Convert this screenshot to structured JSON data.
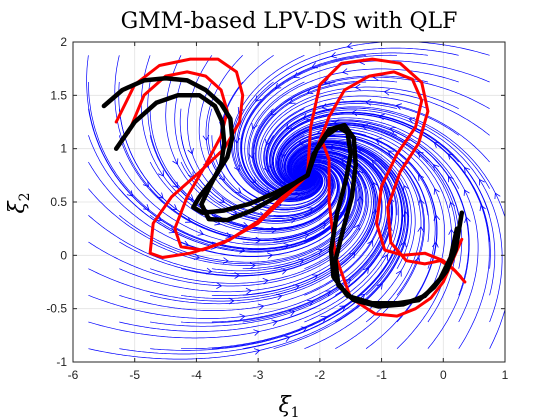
{
  "chart_data": {
    "type": "streamplot",
    "title": "GMM-based LPV-DS with QLF",
    "xlabel": {
      "symbol": "ξ",
      "subscript": "1"
    },
    "ylabel": {
      "symbol": "ξ",
      "subscript": "2"
    },
    "xlim": [
      -6,
      1
    ],
    "ylim": [
      -1,
      2
    ],
    "xticks": [
      "-6",
      "-5",
      "-4",
      "-3",
      "-2",
      "-1",
      "0",
      "1"
    ],
    "yticks": [
      "-1",
      "-0.5",
      "0",
      "0.5",
      "1",
      "1.5",
      "2"
    ],
    "grid": true,
    "attractor": [
      -2.2,
      0.75
    ],
    "colors": {
      "streamlines": "#0000ff",
      "demonstrations": "#000000",
      "reproductions": "#ff0000"
    },
    "demonstrations": [
      {
        "x": [
          -5.5,
          -5.2,
          -4.85,
          -4.5,
          -4.15,
          -3.85,
          -3.6,
          -3.45,
          -3.42,
          -3.5,
          -3.72,
          -3.95,
          -4.05,
          -3.9,
          -3.55,
          -3.15,
          -2.75,
          -2.4,
          -2.2
        ],
        "y": [
          1.4,
          1.55,
          1.64,
          1.66,
          1.64,
          1.55,
          1.42,
          1.28,
          1.1,
          0.92,
          0.72,
          0.55,
          0.45,
          0.4,
          0.42,
          0.48,
          0.58,
          0.68,
          0.75
        ]
      },
      {
        "x": [
          -5.3,
          -5.0,
          -4.65,
          -4.3,
          -3.95,
          -3.7,
          -3.58,
          -3.55,
          -3.6,
          -3.78,
          -3.92,
          -3.8,
          -3.5,
          -3.1,
          -2.7,
          -2.35,
          -2.2
        ],
        "y": [
          1.0,
          1.25,
          1.43,
          1.5,
          1.5,
          1.4,
          1.25,
          1.05,
          0.85,
          0.65,
          0.48,
          0.34,
          0.33,
          0.42,
          0.55,
          0.7,
          0.75
        ]
      },
      {
        "x": [
          -2.2,
          -2.1,
          -1.9,
          -1.7,
          -1.55,
          -1.5,
          -1.58,
          -1.72,
          -1.82,
          -1.78,
          -1.55,
          -1.15,
          -0.75,
          -0.4,
          -0.15,
          0.05,
          0.2,
          0.3
        ],
        "y": [
          0.75,
          0.95,
          1.12,
          1.2,
          1.15,
          0.95,
          0.7,
          0.4,
          0.05,
          -0.2,
          -0.38,
          -0.45,
          -0.45,
          -0.42,
          -0.3,
          -0.15,
          0.05,
          0.4
        ]
      },
      {
        "x": [
          -2.2,
          -2.05,
          -1.85,
          -1.6,
          -1.45,
          -1.42,
          -1.48,
          -1.62,
          -1.75,
          -1.7,
          -1.45,
          -1.05,
          -0.65,
          -0.3,
          -0.05,
          0.12,
          0.22
        ],
        "y": [
          0.75,
          1.0,
          1.18,
          1.22,
          1.1,
          0.85,
          0.55,
          0.25,
          -0.05,
          -0.28,
          -0.42,
          -0.48,
          -0.46,
          -0.38,
          -0.22,
          -0.02,
          0.25
        ]
      }
    ],
    "reproductions": [
      {
        "x": [
          -5.3,
          -5.0,
          -4.6,
          -4.1,
          -3.65,
          -3.35,
          -3.25,
          -3.3,
          -3.55,
          -3.95,
          -4.4,
          -4.7,
          -4.75,
          -4.55,
          -4.1,
          -3.55,
          -3.0,
          -2.55,
          -2.2
        ],
        "y": [
          1.25,
          1.6,
          1.78,
          1.84,
          1.84,
          1.72,
          1.5,
          1.25,
          1.0,
          0.78,
          0.55,
          0.3,
          0.02,
          -0.02,
          0.02,
          0.12,
          0.3,
          0.55,
          0.75
        ]
      },
      {
        "x": [
          -5.1,
          -4.85,
          -4.5,
          -4.15,
          -3.85,
          -3.6,
          -3.5,
          -3.6,
          -3.85,
          -4.15,
          -4.35,
          -4.25,
          -3.9,
          -3.45,
          -3.0,
          -2.6,
          -2.2
        ],
        "y": [
          1.15,
          1.5,
          1.68,
          1.72,
          1.68,
          1.55,
          1.35,
          1.12,
          0.85,
          0.55,
          0.25,
          0.08,
          0.05,
          0.15,
          0.32,
          0.55,
          0.75
        ]
      },
      {
        "x": [
          -2.2,
          -2.05,
          -1.85,
          -1.6,
          -1.2,
          -0.8,
          -0.5,
          -0.35,
          -0.45,
          -0.75,
          -1.0,
          -1.08,
          -0.95,
          -0.65,
          -0.3,
          0.0,
          0.2,
          0.35
        ],
        "y": [
          0.75,
          1.0,
          1.3,
          1.55,
          1.68,
          1.72,
          1.65,
          1.45,
          1.2,
          0.95,
          0.65,
          0.3,
          0.05,
          0.0,
          0.02,
          -0.05,
          -0.15,
          -0.25
        ]
      },
      {
        "x": [
          -2.2,
          -2.15,
          -2.0,
          -1.65,
          -1.15,
          -0.7,
          -0.35,
          -0.25,
          -0.4,
          -0.7,
          -0.9,
          -0.85,
          -0.6,
          -0.3,
          -0.05,
          0.15,
          0.28
        ],
        "y": [
          0.75,
          1.2,
          1.6,
          1.8,
          1.84,
          1.8,
          1.62,
          1.35,
          1.05,
          0.78,
          0.45,
          0.12,
          -0.05,
          -0.08,
          -0.05,
          -0.12,
          -0.2
        ]
      },
      {
        "x": [
          -2.2,
          -2.1,
          -1.95,
          -1.85,
          -1.85,
          -1.75,
          -1.5,
          -1.1,
          -0.75,
          -0.45,
          -0.2,
          0.0,
          0.15,
          0.3
        ],
        "y": [
          0.75,
          0.95,
          1.05,
          0.9,
          0.5,
          0.0,
          -0.4,
          -0.55,
          -0.57,
          -0.5,
          -0.4,
          -0.25,
          -0.05,
          0.15
        ]
      }
    ]
  }
}
